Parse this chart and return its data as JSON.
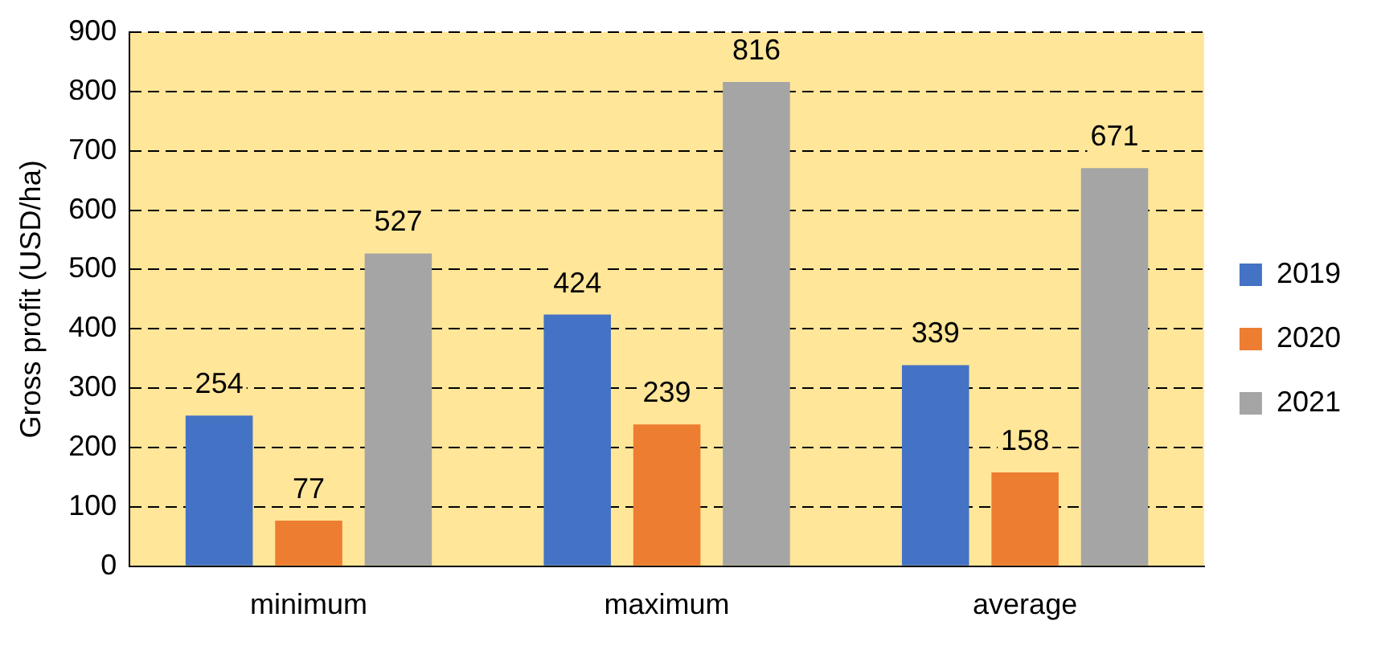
{
  "chart_data": {
    "type": "bar",
    "ylabel": "Gross profit (USD/ha)",
    "categories": [
      "minimum",
      "maximum",
      "average"
    ],
    "series": [
      {
        "name": "2019",
        "color": "#4472c4",
        "values": [
          254,
          424,
          339
        ]
      },
      {
        "name": "2020",
        "color": "#ed7d31",
        "values": [
          77,
          239,
          158
        ]
      },
      {
        "name": "2021",
        "color": "#a5a5a5",
        "values": [
          527,
          816,
          671
        ]
      }
    ],
    "ylim": [
      0,
      900
    ],
    "yticks": [
      0,
      100,
      200,
      300,
      400,
      500,
      600,
      700,
      800,
      900
    ],
    "grid": "y",
    "legend": "right",
    "data_labels": true
  }
}
